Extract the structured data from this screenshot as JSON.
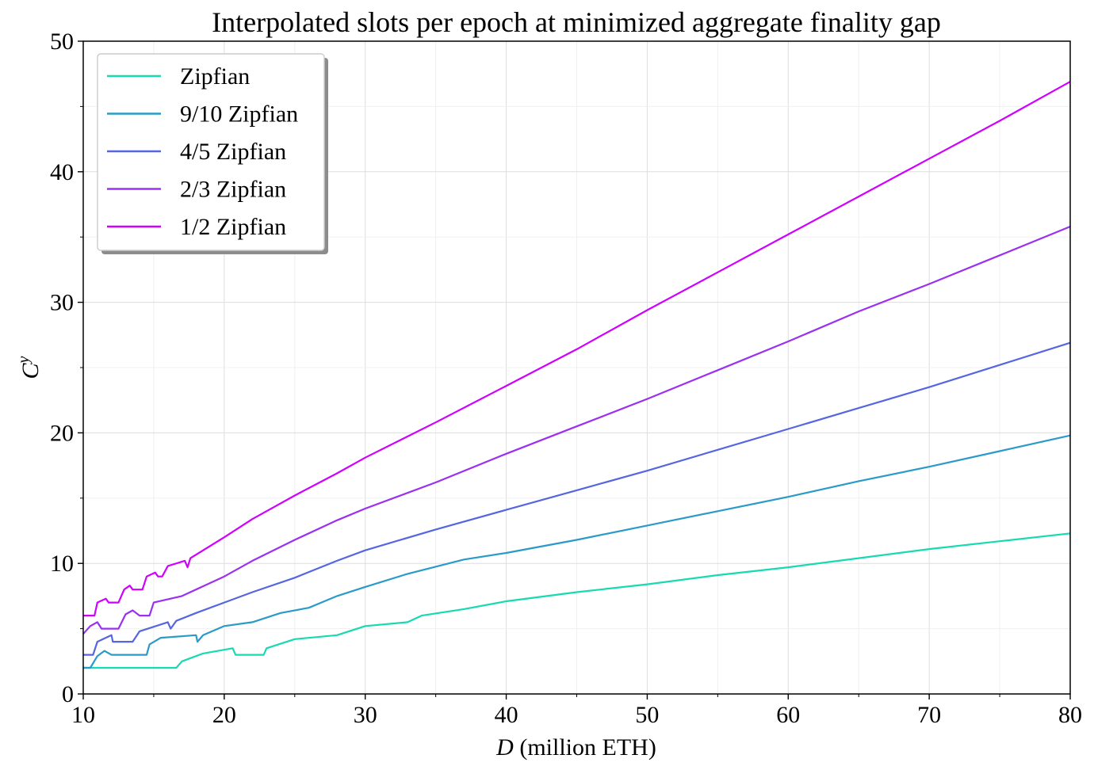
{
  "chart_data": {
    "type": "line",
    "title": "Interpolated slots per epoch at minimized aggregate finality gap",
    "xlabel": {
      "italic": "D",
      "rest": " (million ETH)"
    },
    "ylabel": {
      "base": "C",
      "sup": "y"
    },
    "xlim": [
      10,
      80
    ],
    "ylim": [
      0,
      50
    ],
    "xticks": [
      10,
      20,
      30,
      40,
      50,
      60,
      70,
      80
    ],
    "yticks": [
      0,
      10,
      20,
      30,
      40,
      50
    ],
    "grid": true,
    "legend_position": "upper-left",
    "series": [
      {
        "name": "Zipfian",
        "color": "#17d9b2",
        "points": [
          [
            10,
            2
          ],
          [
            16.6,
            2
          ],
          [
            17,
            2.5
          ],
          [
            18.5,
            3.1
          ],
          [
            20.6,
            3.5
          ],
          [
            20.8,
            3
          ],
          [
            22.8,
            3
          ],
          [
            23.0,
            3.5
          ],
          [
            25,
            4.2
          ],
          [
            28,
            4.5
          ],
          [
            30,
            5.2
          ],
          [
            33,
            5.5
          ],
          [
            34,
            6.0
          ],
          [
            37,
            6.5
          ],
          [
            40,
            7.1
          ],
          [
            45,
            7.8
          ],
          [
            50,
            8.4
          ],
          [
            55,
            9.1
          ],
          [
            60,
            9.7
          ],
          [
            65,
            10.4
          ],
          [
            70,
            11.1
          ],
          [
            75,
            11.7
          ],
          [
            80,
            12.3
          ]
        ]
      },
      {
        "name": "9/10 Zipfian",
        "color": "#2a9bc8",
        "points": [
          [
            10,
            2
          ],
          [
            10.5,
            2
          ],
          [
            11,
            2.9
          ],
          [
            11.5,
            3.3
          ],
          [
            12,
            3.0
          ],
          [
            14.5,
            3.0
          ],
          [
            14.7,
            3.8
          ],
          [
            15.5,
            4.3
          ],
          [
            18,
            4.5
          ],
          [
            18.1,
            4.0
          ],
          [
            18.5,
            4.5
          ],
          [
            20,
            5.2
          ],
          [
            22,
            5.5
          ],
          [
            24,
            6.2
          ],
          [
            26,
            6.6
          ],
          [
            28,
            7.5
          ],
          [
            30,
            8.2
          ],
          [
            33,
            9.2
          ],
          [
            37,
            10.3
          ],
          [
            40,
            10.8
          ],
          [
            45,
            11.8
          ],
          [
            50,
            12.9
          ],
          [
            55,
            14.0
          ],
          [
            60,
            15.1
          ],
          [
            65,
            16.3
          ],
          [
            70,
            17.4
          ],
          [
            75,
            18.6
          ],
          [
            80,
            19.8
          ]
        ]
      },
      {
        "name": "4/5 Zipfian",
        "color": "#5566e0",
        "points": [
          [
            10,
            3
          ],
          [
            10.7,
            3
          ],
          [
            11,
            4.0
          ],
          [
            12,
            4.5
          ],
          [
            12.1,
            4.0
          ],
          [
            13.5,
            4.0
          ],
          [
            14,
            4.8
          ],
          [
            16,
            5.5
          ],
          [
            16.2,
            5.0
          ],
          [
            16.6,
            5.6
          ],
          [
            18,
            6.2
          ],
          [
            20,
            7.0
          ],
          [
            22,
            7.8
          ],
          [
            25,
            8.9
          ],
          [
            28,
            10.2
          ],
          [
            30,
            11.0
          ],
          [
            35,
            12.6
          ],
          [
            40,
            14.1
          ],
          [
            45,
            15.6
          ],
          [
            50,
            17.1
          ],
          [
            55,
            18.7
          ],
          [
            60,
            20.3
          ],
          [
            65,
            21.9
          ],
          [
            70,
            23.5
          ],
          [
            75,
            25.2
          ],
          [
            80,
            26.9
          ]
        ]
      },
      {
        "name": "2/3 Zipfian",
        "color": "#9a30f0",
        "points": [
          [
            10,
            4.6
          ],
          [
            10.5,
            5.2
          ],
          [
            11,
            5.5
          ],
          [
            11.3,
            5.0
          ],
          [
            12.5,
            5.0
          ],
          [
            13,
            6.1
          ],
          [
            13.5,
            6.4
          ],
          [
            14,
            6.0
          ],
          [
            14.7,
            6.0
          ],
          [
            15,
            7.0
          ],
          [
            17,
            7.5
          ],
          [
            20,
            9.0
          ],
          [
            22,
            10.2
          ],
          [
            25,
            11.8
          ],
          [
            28,
            13.3
          ],
          [
            30,
            14.2
          ],
          [
            35,
            16.2
          ],
          [
            40,
            18.4
          ],
          [
            45,
            20.5
          ],
          [
            50,
            22.6
          ],
          [
            55,
            24.8
          ],
          [
            60,
            27.0
          ],
          [
            65,
            29.3
          ],
          [
            70,
            31.4
          ],
          [
            75,
            33.6
          ],
          [
            80,
            35.8
          ]
        ]
      },
      {
        "name": "1/2 Zipfian",
        "color": "#d000ff",
        "points": [
          [
            10,
            6
          ],
          [
            10.8,
            6
          ],
          [
            11,
            7
          ],
          [
            11.6,
            7.3
          ],
          [
            11.8,
            7
          ],
          [
            12.5,
            7
          ],
          [
            12.9,
            8
          ],
          [
            13.3,
            8.3
          ],
          [
            13.5,
            8
          ],
          [
            14.2,
            8
          ],
          [
            14.5,
            9
          ],
          [
            15.1,
            9.3
          ],
          [
            15.3,
            9
          ],
          [
            15.6,
            9
          ],
          [
            16,
            9.8
          ],
          [
            17.2,
            10.2
          ],
          [
            17.4,
            9.7
          ],
          [
            17.6,
            10.4
          ],
          [
            20,
            12.0
          ],
          [
            22,
            13.4
          ],
          [
            25,
            15.2
          ],
          [
            28,
            16.9
          ],
          [
            30,
            18.1
          ],
          [
            35,
            20.8
          ],
          [
            40,
            23.6
          ],
          [
            45,
            26.4
          ],
          [
            50,
            29.4
          ],
          [
            55,
            32.3
          ],
          [
            60,
            35.2
          ],
          [
            65,
            38.1
          ],
          [
            70,
            41.0
          ],
          [
            75,
            43.9
          ],
          [
            80,
            46.9
          ]
        ]
      }
    ]
  }
}
